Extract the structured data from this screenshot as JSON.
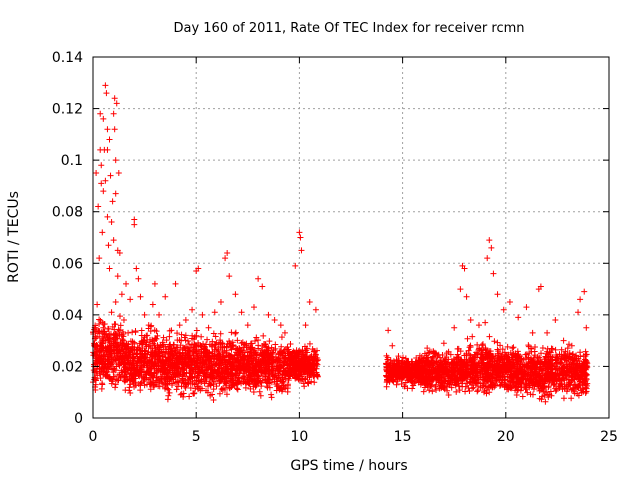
{
  "chart_data": {
    "type": "scatter",
    "title": "Day 160 of 2011, Rate Of TEC Index for receiver rcmn",
    "xlabel": "GPS time / hours",
    "ylabel": "ROTI / TECUs",
    "xlim": [
      0,
      25
    ],
    "ylim": [
      0,
      0.14
    ],
    "xticks": [
      0,
      5,
      10,
      15,
      20,
      25
    ],
    "yticks": [
      0,
      0.02,
      0.04,
      0.06,
      0.08,
      0.1,
      0.12,
      0.14
    ],
    "xtick_labels": [
      "0",
      "5",
      "10",
      "15",
      "20",
      "25"
    ],
    "ytick_labels": [
      "0",
      "0.02",
      "0.04",
      "0.06",
      "0.08",
      "0.1",
      "0.12",
      "0.14"
    ],
    "grid": true,
    "marker": "+",
    "color": "#ff0000",
    "series": [
      {
        "name": "ROTI",
        "points": [
          [
            0.1,
            0.012
          ],
          [
            0.1,
            0.024
          ],
          [
            0.1,
            0.031
          ],
          [
            0.15,
            0.095
          ],
          [
            0.2,
            0.018
          ],
          [
            0.2,
            0.044
          ],
          [
            0.25,
            0.082
          ],
          [
            0.3,
            0.062
          ],
          [
            0.3,
            0.027
          ],
          [
            0.35,
            0.118
          ],
          [
            0.35,
            0.104
          ],
          [
            0.4,
            0.098
          ],
          [
            0.4,
            0.091
          ],
          [
            0.45,
            0.072
          ],
          [
            0.45,
            0.013
          ],
          [
            0.5,
            0.116
          ],
          [
            0.5,
            0.088
          ],
          [
            0.5,
            0.035
          ],
          [
            0.55,
            0.104
          ],
          [
            0.6,
            0.129
          ],
          [
            0.6,
            0.092
          ],
          [
            0.6,
            0.021
          ],
          [
            0.65,
            0.126
          ],
          [
            0.7,
            0.112
          ],
          [
            0.7,
            0.104
          ],
          [
            0.7,
            0.078
          ],
          [
            0.75,
            0.067
          ],
          [
            0.8,
            0.108
          ],
          [
            0.8,
            0.058
          ],
          [
            0.8,
            0.031
          ],
          [
            0.85,
            0.094
          ],
          [
            0.9,
            0.076
          ],
          [
            0.9,
            0.041
          ],
          [
            0.95,
            0.084
          ],
          [
            1.0,
            0.118
          ],
          [
            1.0,
            0.069
          ],
          [
            1.0,
            0.016
          ],
          [
            1.05,
            0.124
          ],
          [
            1.05,
            0.112
          ],
          [
            1.1,
            0.1
          ],
          [
            1.1,
            0.087
          ],
          [
            1.1,
            0.045
          ],
          [
            1.15,
            0.122
          ],
          [
            1.2,
            0.065
          ],
          [
            1.2,
            0.055
          ],
          [
            1.25,
            0.095
          ],
          [
            1.3,
            0.064
          ],
          [
            1.3,
            0.026
          ],
          [
            1.4,
            0.048
          ],
          [
            1.5,
            0.038
          ],
          [
            1.6,
            0.052
          ],
          [
            1.7,
            0.033
          ],
          [
            1.8,
            0.046
          ],
          [
            2.0,
            0.077
          ],
          [
            2.0,
            0.075
          ],
          [
            2.1,
            0.058
          ],
          [
            2.2,
            0.054
          ],
          [
            2.3,
            0.047
          ],
          [
            2.5,
            0.04
          ],
          [
            2.7,
            0.036
          ],
          [
            2.9,
            0.044
          ],
          [
            3.0,
            0.052
          ],
          [
            3.2,
            0.04
          ],
          [
            3.5,
            0.047
          ],
          [
            3.8,
            0.034
          ],
          [
            4.0,
            0.052
          ],
          [
            4.2,
            0.036
          ],
          [
            4.5,
            0.038
          ],
          [
            4.8,
            0.042
          ],
          [
            5.0,
            0.057
          ],
          [
            5.1,
            0.058
          ],
          [
            5.3,
            0.04
          ],
          [
            5.6,
            0.035
          ],
          [
            5.9,
            0.041
          ],
          [
            6.2,
            0.045
          ],
          [
            6.4,
            0.062
          ],
          [
            6.5,
            0.064
          ],
          [
            6.6,
            0.055
          ],
          [
            6.9,
            0.048
          ],
          [
            7.2,
            0.041
          ],
          [
            7.5,
            0.036
          ],
          [
            7.8,
            0.043
          ],
          [
            8.0,
            0.054
          ],
          [
            8.2,
            0.051
          ],
          [
            8.5,
            0.04
          ],
          [
            8.8,
            0.038
          ],
          [
            9.1,
            0.036
          ],
          [
            9.3,
            0.033
          ],
          [
            9.6,
            0.018
          ],
          [
            9.8,
            0.059
          ],
          [
            10.0,
            0.072
          ],
          [
            10.05,
            0.07
          ],
          [
            10.1,
            0.065
          ],
          [
            10.3,
            0.036
          ],
          [
            10.5,
            0.045
          ],
          [
            10.7,
            0.026
          ],
          [
            10.8,
            0.042
          ],
          [
            14.3,
            0.034
          ],
          [
            14.5,
            0.028
          ],
          [
            14.8,
            0.024
          ],
          [
            15.0,
            0.021
          ],
          [
            15.3,
            0.019
          ],
          [
            15.7,
            0.016
          ],
          [
            16.2,
            0.021
          ],
          [
            16.6,
            0.025
          ],
          [
            17.0,
            0.029
          ],
          [
            17.5,
            0.035
          ],
          [
            17.8,
            0.05
          ],
          [
            17.9,
            0.059
          ],
          [
            18.0,
            0.058
          ],
          [
            18.1,
            0.047
          ],
          [
            18.3,
            0.038
          ],
          [
            18.7,
            0.036
          ],
          [
            19.0,
            0.037
          ],
          [
            19.1,
            0.062
          ],
          [
            19.2,
            0.069
          ],
          [
            19.3,
            0.066
          ],
          [
            19.4,
            0.056
          ],
          [
            19.6,
            0.048
          ],
          [
            19.9,
            0.042
          ],
          [
            20.2,
            0.045
          ],
          [
            20.6,
            0.039
          ],
          [
            21.0,
            0.043
          ],
          [
            21.3,
            0.033
          ],
          [
            21.6,
            0.05
          ],
          [
            21.7,
            0.051
          ],
          [
            22.0,
            0.033
          ],
          [
            22.4,
            0.038
          ],
          [
            22.8,
            0.03
          ],
          [
            23.2,
            0.028
          ],
          [
            23.5,
            0.041
          ],
          [
            23.6,
            0.046
          ],
          [
            23.8,
            0.049
          ],
          [
            23.9,
            0.035
          ]
        ],
        "dense_bands": [
          {
            "x": [
              0.0,
              1.5
            ],
            "y": [
              0.006,
              0.043
            ]
          },
          {
            "x": [
              1.5,
              4.0
            ],
            "y": [
              0.005,
              0.038
            ]
          },
          {
            "x": [
              4.0,
              7.0
            ],
            "y": [
              0.005,
              0.036
            ]
          },
          {
            "x": [
              7.0,
              9.5
            ],
            "y": [
              0.006,
              0.034
            ]
          },
          {
            "x": [
              9.5,
              10.9
            ],
            "y": [
              0.011,
              0.03
            ]
          },
          {
            "x": [
              14.2,
              16.0
            ],
            "y": [
              0.011,
              0.025
            ]
          },
          {
            "x": [
              16.0,
              18.0
            ],
            "y": [
              0.007,
              0.029
            ]
          },
          {
            "x": [
              18.0,
              20.5
            ],
            "y": [
              0.007,
              0.032
            ]
          },
          {
            "x": [
              20.5,
              23.95
            ],
            "y": [
              0.005,
              0.03
            ]
          }
        ]
      }
    ]
  }
}
